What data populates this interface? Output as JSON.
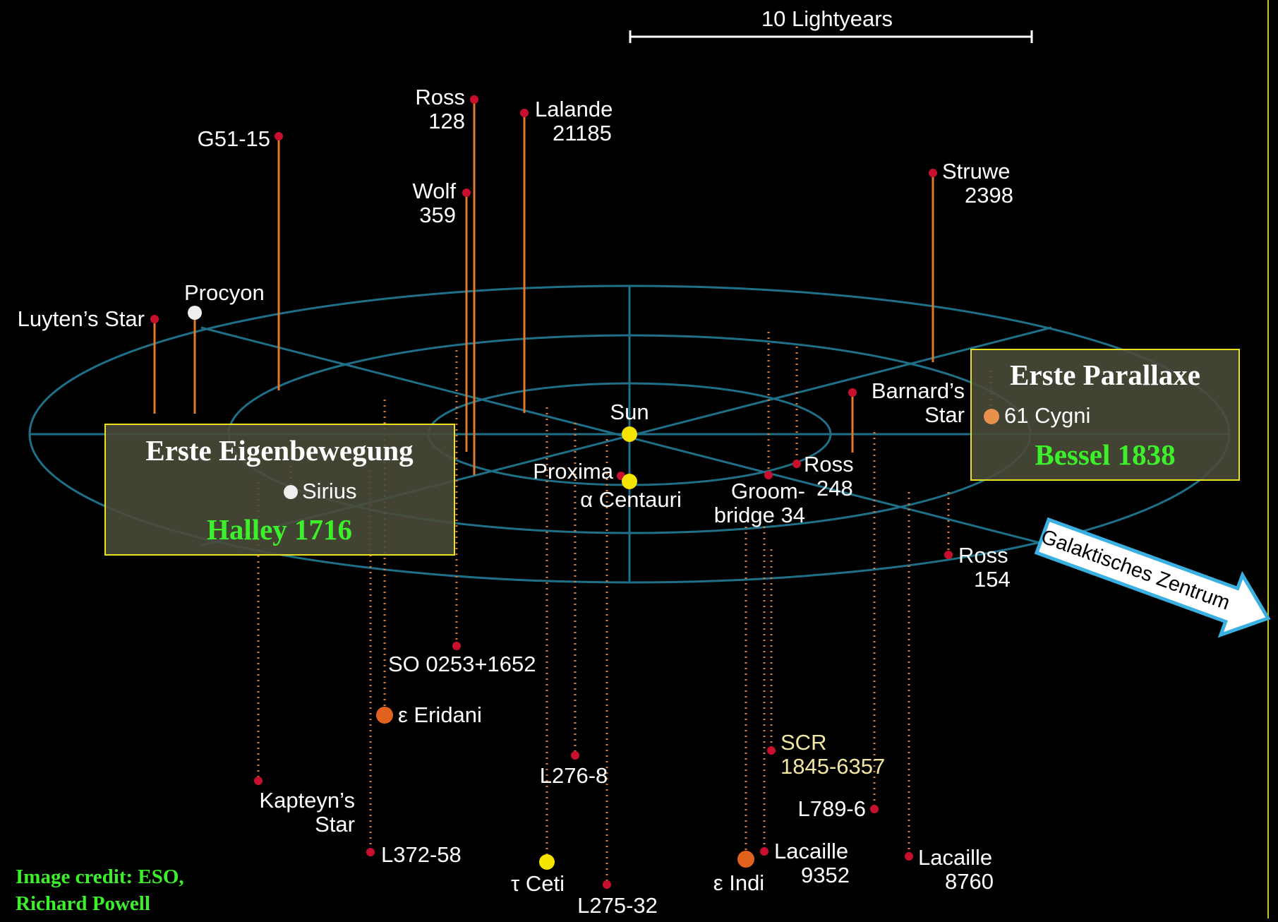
{
  "scale": {
    "label": "10 Lightyears"
  },
  "stars": [
    {
      "id": "ross128",
      "lines": [
        "Ross",
        "128"
      ],
      "kind": "red",
      "stem": "above-solid"
    },
    {
      "id": "lalande21185",
      "lines": [
        "Lalande",
        "21185"
      ],
      "kind": "red",
      "stem": "above-solid"
    },
    {
      "id": "g51-15",
      "lines": [
        "G51-15"
      ],
      "kind": "red",
      "stem": "above-solid"
    },
    {
      "id": "wolf359",
      "lines": [
        "Wolf",
        "359"
      ],
      "kind": "red",
      "stem": "above-solid"
    },
    {
      "id": "struwe2398",
      "lines": [
        "Struwe",
        "2398"
      ],
      "kind": "red",
      "stem": "above-solid"
    },
    {
      "id": "procyon",
      "lines": [
        "Procyon"
      ],
      "kind": "white",
      "stem": "above-solid"
    },
    {
      "id": "luytens-star",
      "lines": [
        "Luyten’s Star"
      ],
      "kind": "red",
      "stem": "above-solid"
    },
    {
      "id": "barnards-star",
      "lines": [
        "Barnard’s",
        "Star"
      ],
      "kind": "red",
      "stem": "above-solid"
    },
    {
      "id": "sun",
      "lines": [
        "Sun"
      ],
      "kind": "yellow",
      "stem": "none"
    },
    {
      "id": "proxima",
      "lines": [
        "Proxima"
      ],
      "kind": "red",
      "stem": "none"
    },
    {
      "id": "alpha-centauri",
      "lines": [
        "α Centauri"
      ],
      "kind": "yellow",
      "stem": "none"
    },
    {
      "id": "ross248",
      "lines": [
        "Ross",
        "248"
      ],
      "kind": "red",
      "stem": "dotted"
    },
    {
      "id": "groombridge34",
      "lines": [
        "Groom-",
        "bridge 34"
      ],
      "kind": "red",
      "stem": "dotted"
    },
    {
      "id": "ross154",
      "lines": [
        "Ross",
        "154"
      ],
      "kind": "red",
      "stem": "dotted"
    },
    {
      "id": "sirius",
      "lines": [
        "Sirius"
      ],
      "kind": "white",
      "stem": "dotted"
    },
    {
      "id": "61-cygni",
      "lines": [
        "61 Cygni"
      ],
      "kind": "orange",
      "stem": "dotted"
    },
    {
      "id": "so0253",
      "lines": [
        "SO 0253+1652"
      ],
      "kind": "red",
      "stem": "dotted"
    },
    {
      "id": "eps-eridani",
      "lines": [
        "ε Eridani"
      ],
      "kind": "orange",
      "stem": "dotted"
    },
    {
      "id": "kapteyns-star",
      "lines": [
        "Kapteyn’s",
        "Star"
      ],
      "kind": "red",
      "stem": "dotted"
    },
    {
      "id": "l372-58",
      "lines": [
        "L372-58"
      ],
      "kind": "red",
      "stem": "dotted"
    },
    {
      "id": "l276-8",
      "lines": [
        "L276-8"
      ],
      "kind": "red",
      "stem": "dotted"
    },
    {
      "id": "tau-ceti",
      "lines": [
        "τ Ceti"
      ],
      "kind": "yellow",
      "stem": "dotted"
    },
    {
      "id": "l275-32",
      "lines": [
        "L275-32"
      ],
      "kind": "red",
      "stem": "dotted"
    },
    {
      "id": "eps-indi",
      "lines": [
        "ε Indi"
      ],
      "kind": "orange",
      "stem": "dotted"
    },
    {
      "id": "lacaille9352",
      "lines": [
        "Lacaille",
        "9352"
      ],
      "kind": "red",
      "stem": "dotted"
    },
    {
      "id": "scr1845",
      "lines": [
        "SCR",
        "1845-6357"
      ],
      "kind": "red",
      "stem": "dotted",
      "label_color": "#f2e7a2"
    },
    {
      "id": "l789-6",
      "lines": [
        "L789-6"
      ],
      "kind": "red",
      "stem": "dotted"
    },
    {
      "id": "lacaille8760",
      "lines": [
        "Lacaille",
        "8760"
      ],
      "kind": "red",
      "stem": "dotted"
    }
  ],
  "callouts": {
    "left": {
      "title": "Erste Eigenbewegung",
      "subtitle": "Halley 1716"
    },
    "right": {
      "title": "Erste Parallaxe",
      "subtitle": "Bessel 1838"
    }
  },
  "arrow": {
    "label": "Galaktisches Zentrum"
  },
  "credit": {
    "line1": "Image credit: ESO,",
    "line2": "Richard Powell"
  },
  "colors": {
    "background": "#000000",
    "grid": "#1f6f88",
    "stem": "#e07a2a",
    "red_star": "#c8102e",
    "yellow_star": "#f5e400",
    "orange_star": "#e0621e",
    "white_star": "#eeeeee",
    "callout_fill": "#4a4a3a",
    "callout_border": "#e8e020",
    "highlight_green": "#3cf02a",
    "arrow_border": "#3ab0e0"
  }
}
